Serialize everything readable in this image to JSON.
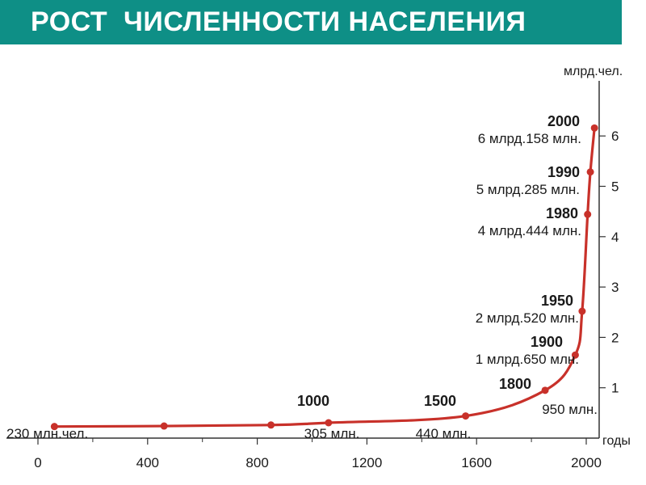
{
  "header": {
    "title": "РОСТ  ЧИСЛЕННОСТИ НАСЕЛЕНИЯ"
  },
  "colors": {
    "title_bg": "#0e8f86",
    "series": "#c8312a",
    "axis": "#333333"
  },
  "chart_data": {
    "type": "line",
    "title": "РОСТ  ЧИСЛЕННОСТИ НАСЕЛЕНИЯ",
    "xlabel": "годы",
    "ylabel": "млрд.чел.",
    "xlim": [
      0,
      2050
    ],
    "ylim": [
      0,
      6.5
    ],
    "x_ticks": [
      0,
      400,
      800,
      1200,
      1600,
      2000
    ],
    "y_ticks": [
      1,
      2,
      3,
      4,
      5,
      6
    ],
    "grid": false,
    "series": [
      {
        "x": [
          60,
          460,
          850,
          1060,
          1560,
          1850,
          1960,
          1985,
          2005,
          2015,
          2030
        ],
        "y": [
          0.23,
          0.24,
          0.26,
          0.305,
          0.44,
          0.95,
          1.65,
          2.52,
          4.444,
          5.285,
          6.158
        ]
      }
    ],
    "annotations": [
      {
        "year": "",
        "value": "230 млн.чел.",
        "x": 60,
        "y": 0.23
      },
      {
        "year": "1000",
        "value": "305 млн.",
        "x": 1060,
        "y": 0.305
      },
      {
        "year": "1500",
        "value": "440 млн.",
        "x": 1560,
        "y": 0.44
      },
      {
        "year": "1800",
        "value": "950 млн.",
        "x": 1850,
        "y": 0.95
      },
      {
        "year": "1900",
        "value": "1 млрд.650 млн.",
        "x": 1960,
        "y": 1.65
      },
      {
        "year": "1950",
        "value": "2 млрд.520 млн.",
        "x": 1985,
        "y": 2.52
      },
      {
        "year": "1980",
        "value": "4 млрд.444 млн.",
        "x": 2005,
        "y": 4.444
      },
      {
        "year": "1990",
        "value": "5 млрд.285 млн.",
        "x": 2015,
        "y": 5.285
      },
      {
        "year": "2000",
        "value": "6 млрд.158 млн.",
        "x": 2030,
        "y": 6.158
      }
    ]
  }
}
